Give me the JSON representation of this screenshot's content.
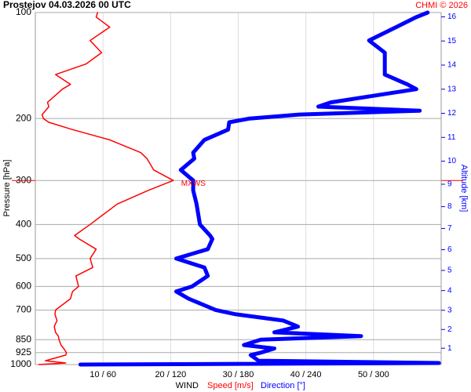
{
  "chart_data": {
    "type": "line",
    "title": "Prostejov    04.03.2026 00 UTC",
    "credit": "CHMI © 2026",
    "ylabel": "Pressure [hPa]",
    "y2label": "Altitude [km]",
    "xlabel": "WIND",
    "xlabel_speed": "Speed [m/s]",
    "xlabel_direction": "Direction [°]",
    "annotation": "MXWS",
    "ylog": true,
    "y_inverted": true,
    "grid": true,
    "ylim": [
      100,
      1000
    ],
    "yticks": [
      100,
      200,
      300,
      400,
      500,
      600,
      700,
      850,
      925,
      1000
    ],
    "xlim": [
      0,
      60
    ],
    "xticks": [
      {
        "value": 10,
        "label": "10 / 60"
      },
      {
        "value": 20,
        "label": "20 / 120"
      },
      {
        "value": 30,
        "label": "30 / 180"
      },
      {
        "value": 40,
        "label": "40 / 240"
      },
      {
        "value": 50,
        "label": "50 / 300"
      }
    ],
    "x2lim": [
      0,
      360
    ],
    "y2ticks": [
      1,
      2,
      3,
      4,
      5,
      6,
      7,
      8,
      9,
      10,
      11,
      12,
      13,
      14,
      15,
      16
    ],
    "pressure": [
      1000,
      990,
      975,
      940,
      925,
      900,
      880,
      850,
      830,
      810,
      780,
      750,
      720,
      700,
      650,
      620,
      600,
      560,
      530,
      500,
      470,
      440,
      430,
      400,
      350,
      320,
      300,
      280,
      260,
      250,
      230,
      215,
      205,
      200,
      195,
      190,
      185,
      180,
      165,
      160,
      150,
      140,
      130,
      120,
      110,
      103,
      100
    ],
    "series": [
      {
        "name": "Speed [m/s]",
        "color": "#ff0000",
        "axis": "x",
        "values": [
          0.5,
          4.5,
          1.5,
          4.5,
          4.6,
          4.2,
          3.8,
          3.5,
          3.4,
          3.0,
          2.8,
          3.2,
          2.9,
          3.0,
          5.2,
          5.5,
          6.4,
          6.0,
          8.5,
          8.1,
          9.0,
          6.5,
          5.8,
          8.1,
          12.1,
          16.7,
          20.4,
          17.5,
          16.5,
          15.6,
          11.0,
          5.5,
          2.0,
          1.2,
          1.0,
          1.5,
          2.0,
          1.8,
          4.0,
          5.2,
          3.0,
          7.5,
          9.8,
          8.1,
          11.0,
          9.0,
          9.2
        ]
      },
      {
        "name": "Direction [°]",
        "color": "#0000ff",
        "axis": "x2",
        "values": [
          40,
          358,
          198,
          191,
          200,
          212,
          185,
          200,
          289,
          212,
          233,
          220,
          178,
          160,
          136,
          125,
          139,
          153,
          150,
          125,
          153,
          157,
          155,
          146,
          143,
          140,
          140,
          129,
          141,
          140,
          150,
          171,
          172,
          190,
          233,
          341,
          251,
          262,
          338,
          330,
          310,
          310,
          310,
          296,
          320,
          338,
          348
        ]
      }
    ]
  }
}
